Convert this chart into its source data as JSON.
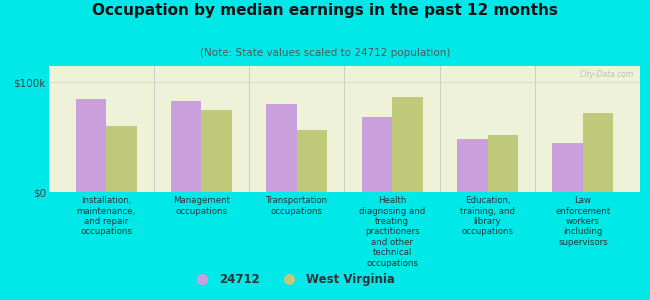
{
  "title": "Occupation by median earnings in the past 12 months",
  "subtitle": "(Note: State values scaled to 24712 population)",
  "background_color": "#00e8e8",
  "plot_bg_color": "#eef2d8",
  "plot_bg_top_color": "#f5f8ea",
  "categories": [
    "Installation,\nmaintenance,\nand repair\noccupations",
    "Management\noccupations",
    "Transportation\noccupations",
    "Health\ndiagnosing and\ntreating\npractitioners\nand other\ntechnical\noccupations",
    "Education,\ntraining, and\nlibrary\noccupations",
    "Law\nenforcement\nworkers\nincluding\nsupervisors"
  ],
  "values_24712": [
    85000,
    83000,
    80000,
    68000,
    48000,
    45000
  ],
  "values_wv": [
    60000,
    75000,
    57000,
    87000,
    52000,
    72000
  ],
  "color_24712": "#c9a0dc",
  "color_wv": "#bfc97a",
  "ylim": [
    0,
    115000
  ],
  "yticks": [
    0,
    100000
  ],
  "ytick_labels": [
    "$0",
    "$100k"
  ],
  "legend_label_24712": "24712",
  "legend_label_wv": "West Virginia",
  "bar_width": 0.32,
  "watermark": "City-Data.com",
  "separator_color": "#cccccc",
  "grid_line_color": "#ddddcc"
}
